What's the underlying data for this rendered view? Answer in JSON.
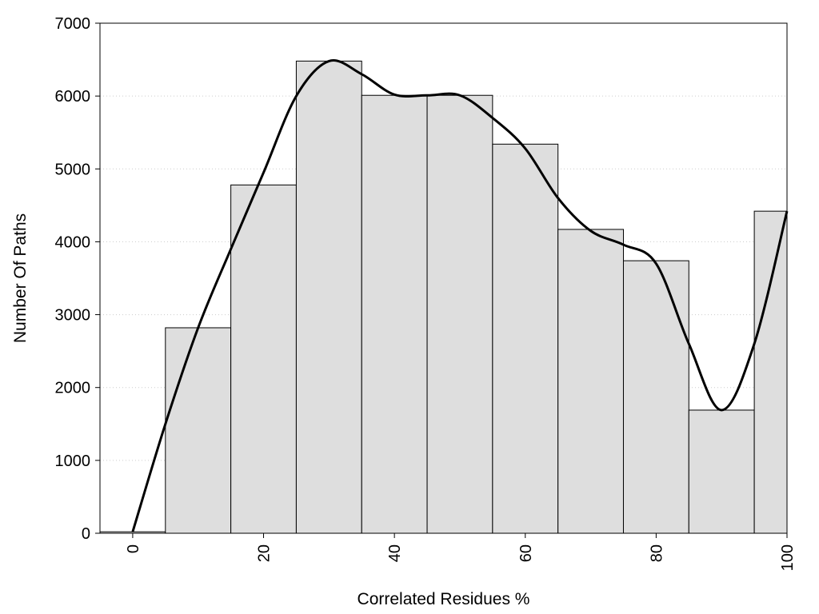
{
  "chart_data": {
    "type": "bar",
    "title": "",
    "xlabel": "Correlated Residues %",
    "ylabel": "Number Of Paths",
    "xlim": [
      -5,
      100
    ],
    "ylim": [
      0,
      7000
    ],
    "x_ticks": [
      0,
      20,
      40,
      60,
      80,
      100
    ],
    "y_ticks": [
      0,
      1000,
      2000,
      3000,
      4000,
      5000,
      6000,
      7000
    ],
    "bar_width": 10,
    "grid": "horizontal dotted",
    "series": [
      {
        "type": "bar",
        "x": [
          0,
          10,
          20,
          30,
          40,
          50,
          60,
          70,
          80,
          90,
          100
        ],
        "values": [
          20,
          2820,
          4780,
          6480,
          6010,
          6010,
          5340,
          4170,
          3740,
          1690,
          4420
        ]
      },
      {
        "type": "line",
        "smooth": true,
        "x": [
          0,
          5,
          10,
          15,
          20,
          25,
          30,
          35,
          40,
          45,
          50,
          55,
          60,
          65,
          70,
          75,
          80,
          85,
          90,
          95,
          100
        ],
        "values": [
          20,
          1500,
          2820,
          3900,
          4950,
          6000,
          6480,
          6300,
          6020,
          6010,
          6010,
          5700,
          5280,
          4600,
          4150,
          3960,
          3700,
          2600,
          1690,
          2600,
          4420
        ]
      }
    ],
    "colors": {
      "bar_fill": "#dedede",
      "bar_stroke": "#000000",
      "line": "#000000",
      "grid": "#cccccc"
    }
  }
}
